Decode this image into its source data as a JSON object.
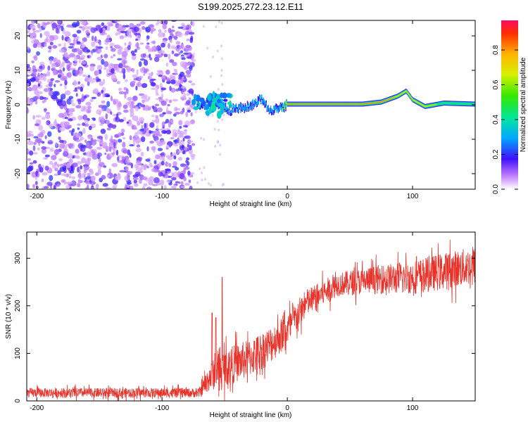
{
  "title": "S199.2025.272.23.12.E11",
  "chart_data": [
    {
      "type": "heatmap",
      "name": "spectrogram",
      "xlabel": "Height of straight line (km)",
      "ylabel": "Frequency (Hz)",
      "xlim": [
        -208,
        150
      ],
      "ylim": [
        -24.5,
        24.5
      ],
      "xticks": [
        -200,
        -100,
        0,
        100
      ],
      "xtick_labels": [
        "-200",
        "-100",
        "0",
        "100"
      ],
      "yticks": [
        -20,
        -10,
        0,
        10,
        20
      ],
      "ytick_labels": [
        "-20",
        "-10",
        "0",
        "10",
        "20"
      ],
      "noise_region_x": [
        -208,
        -75
      ],
      "ridge": [
        {
          "x": -72,
          "f": 0.0,
          "a": 0.45
        },
        {
          "x": -60,
          "f": 0.5,
          "a": 0.35
        },
        {
          "x": -45,
          "f": -1.5,
          "a": 0.3
        },
        {
          "x": -30,
          "f": -0.5,
          "a": 0.35
        },
        {
          "x": -20,
          "f": 1.8,
          "a": 0.4
        },
        {
          "x": -15,
          "f": -1.5,
          "a": 0.35
        },
        {
          "x": -5,
          "f": -1.0,
          "a": 0.4
        },
        {
          "x": 0,
          "f": 0.2,
          "a": 0.9
        },
        {
          "x": 60,
          "f": 0.2,
          "a": 0.9
        },
        {
          "x": 75,
          "f": 0.8,
          "a": 0.85
        },
        {
          "x": 88,
          "f": 2.5,
          "a": 0.8
        },
        {
          "x": 95,
          "f": 4.0,
          "a": 0.75
        },
        {
          "x": 100,
          "f": 1.5,
          "a": 0.7
        },
        {
          "x": 110,
          "f": -0.5,
          "a": 0.65
        },
        {
          "x": 125,
          "f": 0.5,
          "a": 0.6
        },
        {
          "x": 150,
          "f": 0.2,
          "a": 0.6
        }
      ],
      "colorbar": {
        "label": "Normalized spectral amplitude",
        "range": [
          0,
          0.97
        ],
        "ticks": [
          0,
          0.2,
          0.4,
          0.6,
          0.8
        ],
        "tick_labels": [
          "0.0",
          "0.2",
          "0.4",
          "0.6",
          "0.8"
        ]
      }
    },
    {
      "type": "line",
      "name": "snr",
      "xlabel": "Height of straight line (km)",
      "ylabel": "SNR (10 * v/v)",
      "xlim": [
        -208,
        150
      ],
      "ylim": [
        0,
        355
      ],
      "xticks": [
        -200,
        -100,
        0,
        100
      ],
      "xtick_labels": [
        "-200",
        "-100",
        "0",
        "100"
      ],
      "yticks": [
        0,
        100,
        200,
        300
      ],
      "ytick_labels": [
        "0",
        "100",
        "200",
        "300"
      ],
      "line_color": "#e8322a",
      "envelope": [
        {
          "x": -208,
          "mean": 17,
          "spread": 10
        },
        {
          "x": -70,
          "mean": 17,
          "spread": 10
        },
        {
          "x": -62,
          "mean": 50,
          "spread": 30
        },
        {
          "x": -50,
          "mean": 70,
          "spread": 40
        },
        {
          "x": -40,
          "mean": 80,
          "spread": 40
        },
        {
          "x": -30,
          "mean": 90,
          "spread": 40
        },
        {
          "x": -15,
          "mean": 115,
          "spread": 40
        },
        {
          "x": 0,
          "mean": 150,
          "spread": 35
        },
        {
          "x": 15,
          "mean": 205,
          "spread": 30
        },
        {
          "x": 40,
          "mean": 245,
          "spread": 25
        },
        {
          "x": 70,
          "mean": 255,
          "spread": 30
        },
        {
          "x": 100,
          "mean": 260,
          "spread": 35
        },
        {
          "x": 130,
          "mean": 275,
          "spread": 40
        },
        {
          "x": 150,
          "mean": 285,
          "spread": 40
        }
      ],
      "spikes": [
        {
          "x": -52,
          "y": 260
        },
        {
          "x": -60,
          "y": 185
        },
        {
          "x": -57,
          "y": 175
        }
      ]
    }
  ]
}
